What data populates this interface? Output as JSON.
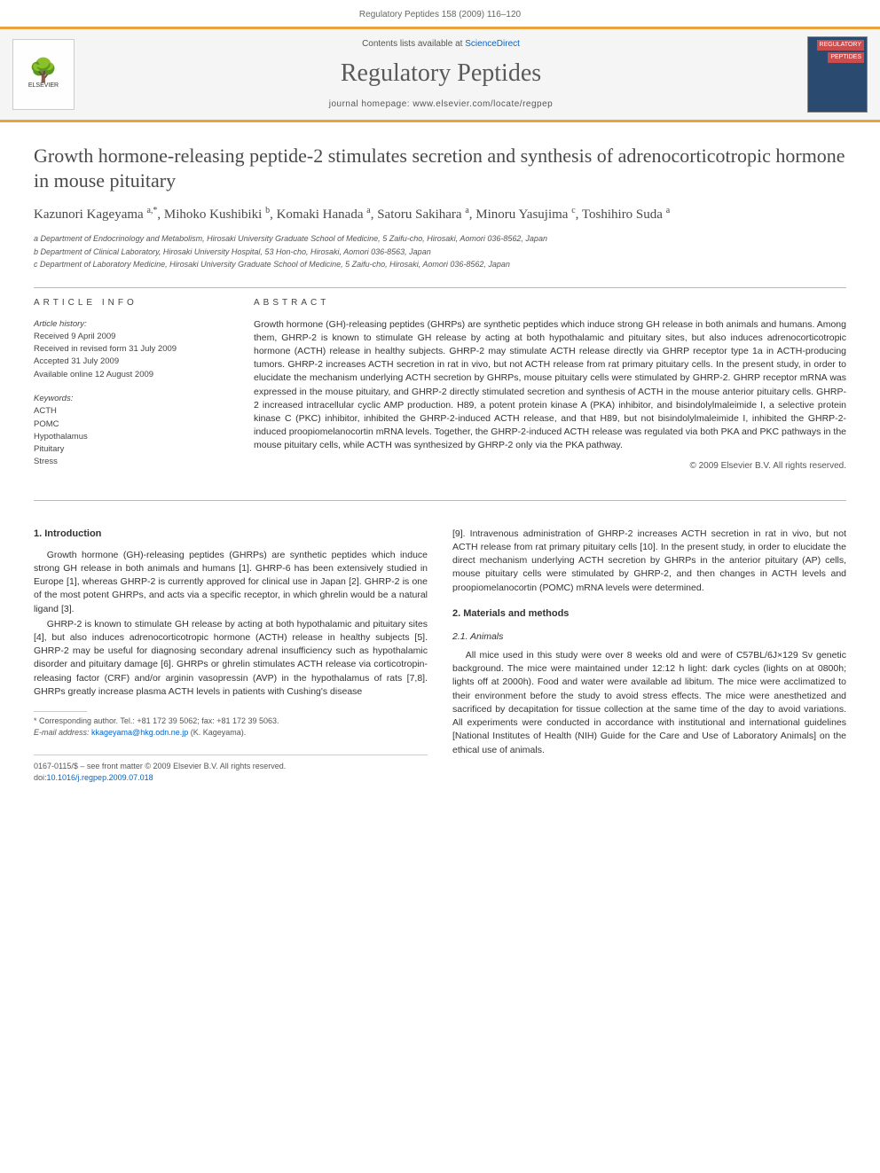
{
  "header": {
    "running": "Regulatory Peptides 158 (2009) 116–120"
  },
  "banner": {
    "contents_prefix": "Contents lists available at ",
    "contents_link": "ScienceDirect",
    "journal": "Regulatory Peptides",
    "homepage_prefix": "journal homepage: ",
    "homepage": "www.elsevier.com/locate/regpep",
    "publisher": "ELSEVIER",
    "cover_label": "REGULATORY",
    "cover_label2": "PEPTIDES"
  },
  "article": {
    "title": "Growth hormone-releasing peptide-2 stimulates secretion and synthesis of adrenocorticotropic hormone in mouse pituitary",
    "authors_html": "Kazunori Kageyama <sup>a,*</sup>, Mihoko Kushibiki <sup>b</sup>, Komaki Hanada <sup>a</sup>, Satoru Sakihara <sup>a</sup>, Minoru Yasujima <sup>c</sup>, Toshihiro Suda <sup>a</sup>",
    "affiliations": [
      "a Department of Endocrinology and Metabolism, Hirosaki University Graduate School of Medicine, 5 Zaifu-cho, Hirosaki, Aomori 036-8562, Japan",
      "b Department of Clinical Laboratory, Hirosaki University Hospital, 53 Hon-cho, Hirosaki, Aomori 036-8563, Japan",
      "c Department of Laboratory Medicine, Hirosaki University Graduate School of Medicine, 5 Zaifu-cho, Hirosaki, Aomori 036-8562, Japan"
    ]
  },
  "info": {
    "head": "ARTICLE INFO",
    "history_label": "Article history:",
    "history": [
      "Received 9 April 2009",
      "Received in revised form 31 July 2009",
      "Accepted 31 July 2009",
      "Available online 12 August 2009"
    ],
    "keywords_label": "Keywords:",
    "keywords": [
      "ACTH",
      "POMC",
      "Hypothalamus",
      "Pituitary",
      "Stress"
    ]
  },
  "abstract": {
    "head": "ABSTRACT",
    "text": "Growth hormone (GH)-releasing peptides (GHRPs) are synthetic peptides which induce strong GH release in both animals and humans. Among them, GHRP-2 is known to stimulate GH release by acting at both hypothalamic and pituitary sites, but also induces adrenocorticotropic hormone (ACTH) release in healthy subjects. GHRP-2 may stimulate ACTH release directly via GHRP receptor type 1a in ACTH-producing tumors. GHRP-2 increases ACTH secretion in rat in vivo, but not ACTH release from rat primary pituitary cells. In the present study, in order to elucidate the mechanism underlying ACTH secretion by GHRPs, mouse pituitary cells were stimulated by GHRP-2. GHRP receptor mRNA was expressed in the mouse pituitary, and GHRP-2 directly stimulated secretion and synthesis of ACTH in the mouse anterior pituitary cells. GHRP-2 increased intracellular cyclic AMP production. H89, a potent protein kinase A (PKA) inhibitor, and bisindolylmaleimide I, a selective protein kinase C (PKC) inhibitor, inhibited the GHRP-2-induced ACTH release, and that H89, but not bisindolylmaleimide I, inhibited the GHRP-2-induced proopiomelanocortin mRNA levels. Together, the GHRP-2-induced ACTH release was regulated via both PKA and PKC pathways in the mouse pituitary cells, while ACTH was synthesized by GHRP-2 only via the PKA pathway.",
    "copyright": "© 2009 Elsevier B.V. All rights reserved."
  },
  "body": {
    "s1_head": "1. Introduction",
    "s1_p1": "Growth hormone (GH)-releasing peptides (GHRPs) are synthetic peptides which induce strong GH release in both animals and humans [1]. GHRP-6 has been extensively studied in Europe [1], whereas GHRP-2 is currently approved for clinical use in Japan [2]. GHRP-2 is one of the most potent GHRPs, and acts via a specific receptor, in which ghrelin would be a natural ligand [3].",
    "s1_p2": "GHRP-2 is known to stimulate GH release by acting at both hypothalamic and pituitary sites [4], but also induces adrenocorticotropic hormone (ACTH) release in healthy subjects [5]. GHRP-2 may be useful for diagnosing secondary adrenal insufficiency such as hypothalamic disorder and pituitary damage [6]. GHRPs or ghrelin stimulates ACTH release via corticotropin-releasing factor (CRF) and/or arginin vasopressin (AVP) in the hypothalamus of rats [7,8]. GHRPs greatly increase plasma ACTH levels in patients with Cushing's disease",
    "s1_p3": "[9]. Intravenous administration of GHRP-2 increases ACTH secretion in rat in vivo, but not ACTH release from rat primary pituitary cells [10]. In the present study, in order to elucidate the direct mechanism underlying ACTH secretion by GHRPs in the anterior pituitary (AP) cells, mouse pituitary cells were stimulated by GHRP-2, and then changes in ACTH levels and proopiomelanocortin (POMC) mRNA levels were determined.",
    "s2_head": "2. Materials and methods",
    "s21_head": "2.1. Animals",
    "s21_p1": "All mice used in this study were over 8 weeks old and were of C57BL/6J×129 Sv genetic background. The mice were maintained under 12:12 h light: dark cycles (lights on at 0800h; lights off at 2000h). Food and water were available ad libitum. The mice were acclimatized to their environment before the study to avoid stress effects. The mice were anesthetized and sacrificed by decapitation for tissue collection at the same time of the day to avoid variations. All experiments were conducted in accordance with institutional and international guidelines [National Institutes of Health (NIH) Guide for the Care and Use of Laboratory Animals] on the ethical use of animals."
  },
  "corresponding": {
    "line1": "* Corresponding author. Tel.: +81 172 39 5062; fax: +81 172 39 5063.",
    "line2_label": "E-mail address: ",
    "email": "kkageyama@hkg.odn.ne.jp",
    "line2_suffix": " (K. Kageyama)."
  },
  "footer": {
    "line1": "0167-0115/$ – see front matter © 2009 Elsevier B.V. All rights reserved.",
    "doi_label": "doi:",
    "doi": "10.1016/j.regpep.2009.07.018"
  }
}
